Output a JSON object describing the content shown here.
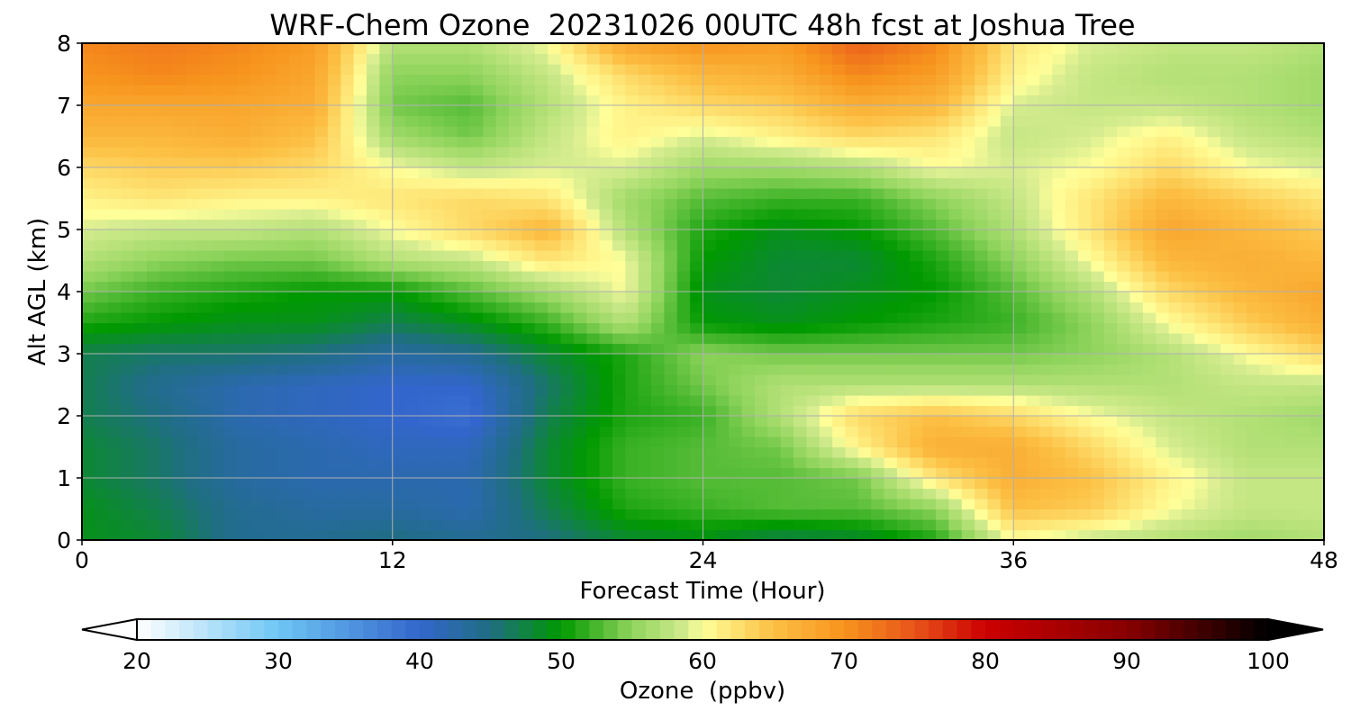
{
  "chart_data": {
    "type": "heatmap",
    "title": "WRF-Chem Ozone  20231026 00UTC 48h fcst at Joshua Tree",
    "xlabel": "Forecast Time (Hour)",
    "ylabel": "Alt AGL (km)",
    "xlim": [
      0,
      48
    ],
    "ylim": [
      0,
      8
    ],
    "xticks": [
      "0",
      "12",
      "24",
      "36",
      "48"
    ],
    "yticks": [
      "0",
      "1",
      "2",
      "3",
      "4",
      "5",
      "6",
      "7",
      "8"
    ],
    "grid": true,
    "colorbar": {
      "label": "Ozone  (ppbv)",
      "min": 20,
      "max": 100,
      "ticks": [
        "20",
        "30",
        "40",
        "50",
        "60",
        "70",
        "80",
        "90",
        "100"
      ],
      "extend": "both",
      "stops": [
        [
          20,
          "#ffffff"
        ],
        [
          30,
          "#6ec6f4"
        ],
        [
          40,
          "#3366cc"
        ],
        [
          45,
          "#1f6e82"
        ],
        [
          50,
          "#009900"
        ],
        [
          55,
          "#8fd45c"
        ],
        [
          59,
          "#d6ec90"
        ],
        [
          60,
          "#ffff99"
        ],
        [
          65,
          "#fcc044"
        ],
        [
          70,
          "#f7941d"
        ],
        [
          75,
          "#e8541a"
        ],
        [
          80,
          "#cc0000"
        ],
        [
          90,
          "#880000"
        ],
        [
          100,
          "#000000"
        ]
      ]
    },
    "x": [
      0,
      3,
      6,
      9,
      12,
      15,
      18,
      21,
      24,
      27,
      30,
      33,
      36,
      39,
      42,
      45,
      48
    ],
    "y": [
      0,
      0.5,
      1,
      1.5,
      2,
      2.5,
      3,
      3.5,
      4,
      4.5,
      5,
      5.5,
      6,
      6.5,
      7,
      7.5,
      8
    ],
    "z": [
      [
        49,
        48,
        44,
        44,
        45,
        44,
        45,
        48,
        49,
        47,
        48,
        51,
        60,
        58,
        57,
        56,
        57
      ],
      [
        49,
        47,
        44,
        43,
        43,
        42,
        47,
        51,
        52,
        53,
        53,
        55,
        65,
        64,
        60,
        58,
        58
      ],
      [
        48,
        46,
        43,
        42,
        42,
        42,
        48,
        52,
        53,
        53,
        54,
        62,
        67,
        65,
        61,
        58,
        58
      ],
      [
        48,
        46,
        43,
        42,
        41,
        41,
        48,
        52,
        53,
        54,
        61,
        67,
        67,
        63,
        59,
        57,
        57
      ],
      [
        47,
        45,
        42,
        41,
        40,
        39,
        47,
        51,
        52,
        57,
        63,
        65,
        63,
        60,
        58,
        57,
        56
      ],
      [
        47,
        44,
        42,
        41,
        40,
        40,
        46,
        51,
        54,
        57,
        57,
        57,
        57,
        57,
        57,
        58,
        58
      ],
      [
        47,
        46,
        46,
        45,
        43,
        44,
        48,
        51,
        55,
        54,
        54,
        54,
        54,
        55,
        57,
        60,
        63
      ],
      [
        51,
        50,
        49,
        49,
        47,
        49,
        52,
        57,
        50,
        49,
        50,
        51,
        52,
        55,
        60,
        64,
        67
      ],
      [
        54,
        52,
        51,
        50,
        50,
        53,
        56,
        60,
        49,
        48,
        49,
        50,
        53,
        57,
        63,
        66,
        68
      ],
      [
        57,
        55,
        54,
        54,
        57,
        58,
        62,
        60,
        50,
        48,
        48,
        51,
        55,
        60,
        66,
        67,
        66
      ],
      [
        59,
        58,
        58,
        57,
        60,
        63,
        66,
        57,
        51,
        49,
        50,
        53,
        57,
        62,
        68,
        66,
        64
      ],
      [
        61,
        62,
        61,
        61,
        62,
        63,
        62,
        56,
        53,
        52,
        52,
        55,
        58,
        62,
        66,
        64,
        62
      ],
      [
        63,
        64,
        64,
        63,
        60,
        58,
        59,
        59,
        56,
        56,
        57,
        60,
        59,
        60,
        63,
        60,
        59
      ],
      [
        66,
        66,
        67,
        65,
        56,
        54,
        58,
        61,
        59,
        61,
        63,
        62,
        58,
        59,
        61,
        58,
        57
      ],
      [
        68,
        68,
        68,
        67,
        54,
        53,
        57,
        61,
        63,
        64,
        67,
        66,
        59,
        58,
        58,
        57,
        56
      ],
      [
        70,
        71,
        70,
        68,
        55,
        55,
        58,
        63,
        66,
        67,
        71,
        69,
        61,
        58,
        57,
        57,
        56
      ],
      [
        71,
        72,
        71,
        69,
        57,
        57,
        60,
        68,
        70,
        69,
        74,
        71,
        62,
        59,
        58,
        58,
        57
      ]
    ]
  }
}
